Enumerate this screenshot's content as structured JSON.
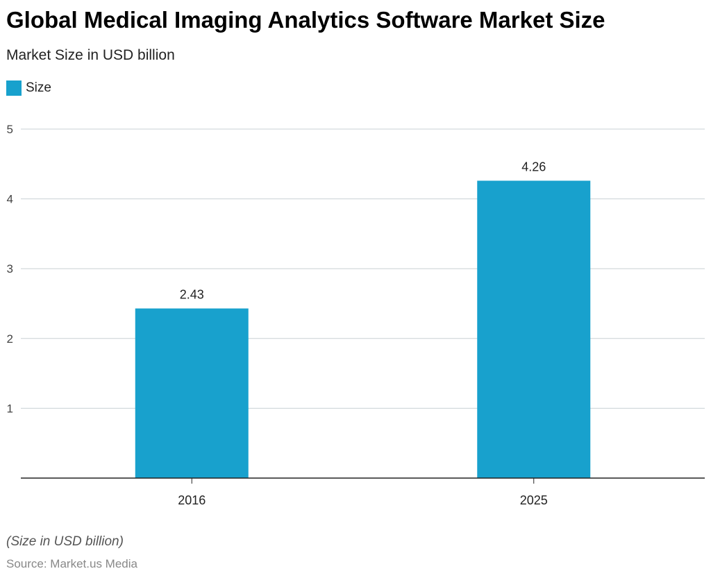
{
  "chart_data": {
    "type": "bar",
    "title": "Global Medical Imaging Analytics Software Market Size",
    "subtitle": "Market Size in USD billion",
    "categories": [
      "2016",
      "2025"
    ],
    "series": [
      {
        "name": "Size",
        "values": [
          2.43,
          4.26
        ],
        "color": "#18a1cd"
      }
    ],
    "ylim": [
      0,
      5
    ],
    "yticks": [
      1,
      2,
      3,
      4,
      5
    ],
    "grid": true,
    "legend": "top-left",
    "note": "(Size in USD billion)",
    "source": "Source: Market.us Media"
  }
}
